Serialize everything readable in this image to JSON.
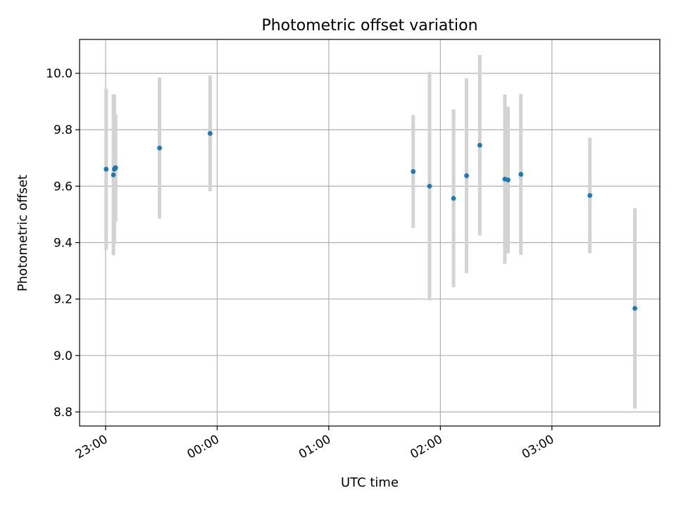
{
  "chart_data": {
    "type": "scatter",
    "title": "Photometric offset variation",
    "xlabel": "UTC time",
    "ylabel": "Photometric offset",
    "grid": true,
    "legend": "none",
    "date": "",
    "xlim": [
      "22:46:00",
      "03:58:00"
    ],
    "ylim": [
      8.75,
      10.12
    ],
    "xticks": [
      "23:00",
      "00:00",
      "01:00",
      "02:00",
      "03:00"
    ],
    "yticks": [
      8.8,
      9.0,
      9.2,
      9.4,
      9.6,
      9.8,
      10.0
    ],
    "point_color": "#1f77b4",
    "errorbar_color": "#d3d3d3",
    "points": [
      {
        "time": "23:00:18",
        "y": 9.66,
        "err": 0.285
      },
      {
        "time": "23:04:12",
        "y": 9.64,
        "err": 0.285
      },
      {
        "time": "23:04:42",
        "y": 9.66,
        "err": 0.265
      },
      {
        "time": "23:05:06",
        "y": 9.665,
        "err": 0.19
      },
      {
        "time": "23:05:24",
        "y": 9.665,
        "err": 0.19
      },
      {
        "time": "23:29:00",
        "y": 9.735,
        "err": 0.25
      },
      {
        "time": "23:56:12",
        "y": 9.787,
        "err": 0.205
      },
      {
        "time": "01:45:24",
        "y": 9.652,
        "err": 0.2
      },
      {
        "time": "01:54:12",
        "y": 9.6,
        "err": 0.405
      },
      {
        "time": "02:07:06",
        "y": 9.557,
        "err": 0.315
      },
      {
        "time": "02:14:06",
        "y": 9.637,
        "err": 0.345
      },
      {
        "time": "02:21:12",
        "y": 9.745,
        "err": 0.32
      },
      {
        "time": "02:34:42",
        "y": 9.625,
        "err": 0.3
      },
      {
        "time": "02:36:24",
        "y": 9.622,
        "err": 0.26
      },
      {
        "time": "02:43:18",
        "y": 9.642,
        "err": 0.285
      },
      {
        "time": "03:20:24",
        "y": 9.567,
        "err": 0.205
      },
      {
        "time": "03:44:36",
        "y": 9.167,
        "err": 0.355
      }
    ]
  }
}
